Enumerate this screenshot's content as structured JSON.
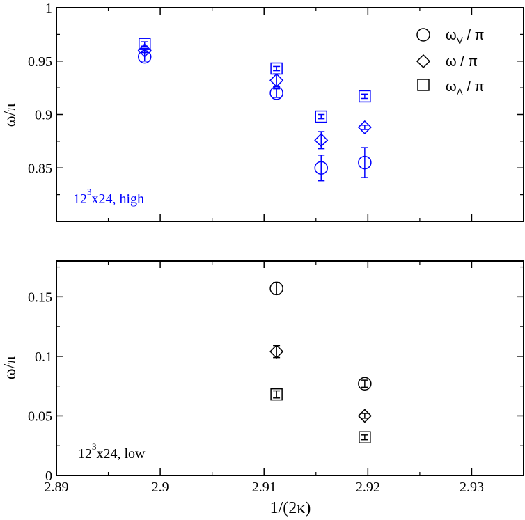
{
  "chart_data": [
    {
      "type": "scatter",
      "ylabel": "ω/π",
      "xlim": [
        2.89,
        2.935
      ],
      "ylim": [
        0.8,
        1.0
      ],
      "yticks": [
        "0.85",
        "0.9",
        "0.95",
        "1"
      ],
      "ytick_values": [
        0.85,
        0.9,
        0.95,
        1.0
      ],
      "annotation": {
        "base": "12",
        "sup": "3",
        "rest": "x24, high"
      },
      "color": "#0000ff",
      "legend_position": "top-right",
      "legend": [
        {
          "base": "ω",
          "sub": "V",
          "rest": " / π",
          "marker": "circle"
        },
        {
          "base": "ω",
          "sub": "",
          "rest": " / π",
          "marker": "diamond"
        },
        {
          "base": "ω",
          "sub": "A",
          "rest": " / π",
          "marker": "square"
        }
      ],
      "series": [
        {
          "name": "ωV / π",
          "marker": "circle",
          "points": [
            {
              "x": 2.8985,
              "y": 0.954,
              "err": 0.004
            },
            {
              "x": 2.9112,
              "y": 0.92,
              "err": 0.004
            },
            {
              "x": 2.9155,
              "y": 0.85,
              "err": 0.012
            },
            {
              "x": 2.9197,
              "y": 0.855,
              "err": 0.014
            }
          ]
        },
        {
          "name": "ω / π",
          "marker": "diamond",
          "points": [
            {
              "x": 2.8985,
              "y": 0.96,
              "err": 0.002
            },
            {
              "x": 2.9112,
              "y": 0.932,
              "err": 0.006
            },
            {
              "x": 2.9155,
              "y": 0.876,
              "err": 0.008
            },
            {
              "x": 2.9197,
              "y": 0.888,
              "err": 0.002
            }
          ]
        },
        {
          "name": "ωA / π",
          "marker": "square",
          "points": [
            {
              "x": 2.8985,
              "y": 0.966,
              "err": 0.002
            },
            {
              "x": 2.9112,
              "y": 0.943,
              "err": 0.002
            },
            {
              "x": 2.9155,
              "y": 0.898,
              "err": 0.002
            },
            {
              "x": 2.9197,
              "y": 0.917,
              "err": 0.002
            }
          ]
        }
      ]
    },
    {
      "type": "scatter",
      "xlabel": "1/(2κ)",
      "ylabel": "ω/π",
      "xlim": [
        2.89,
        2.935
      ],
      "ylim": [
        0.0,
        0.18
      ],
      "xticks": [
        "2.89",
        "2.9",
        "2.91",
        "2.92",
        "2.93"
      ],
      "xtick_values": [
        2.89,
        2.9,
        2.91,
        2.92,
        2.93
      ],
      "yticks": [
        "0",
        "0.05",
        "0.1",
        "0.15"
      ],
      "ytick_values": [
        0.0,
        0.05,
        0.1,
        0.15
      ],
      "annotation": {
        "base": "12",
        "sup": "3",
        "rest": "x24, low"
      },
      "color": "#000000",
      "series": [
        {
          "name": "ωV / π",
          "marker": "circle",
          "points": [
            {
              "x": 2.9112,
              "y": 0.157,
              "err": 0.005
            },
            {
              "x": 2.9197,
              "y": 0.077,
              "err": 0.003
            }
          ]
        },
        {
          "name": "ω / π",
          "marker": "diamond",
          "points": [
            {
              "x": 2.9112,
              "y": 0.104,
              "err": 0.005
            },
            {
              "x": 2.9197,
              "y": 0.05,
              "err": 0.002
            }
          ]
        },
        {
          "name": "ωA / π",
          "marker": "square",
          "points": [
            {
              "x": 2.9112,
              "y": 0.068,
              "err": 0.003
            },
            {
              "x": 2.9197,
              "y": 0.032,
              "err": 0.002
            }
          ]
        }
      ]
    }
  ]
}
